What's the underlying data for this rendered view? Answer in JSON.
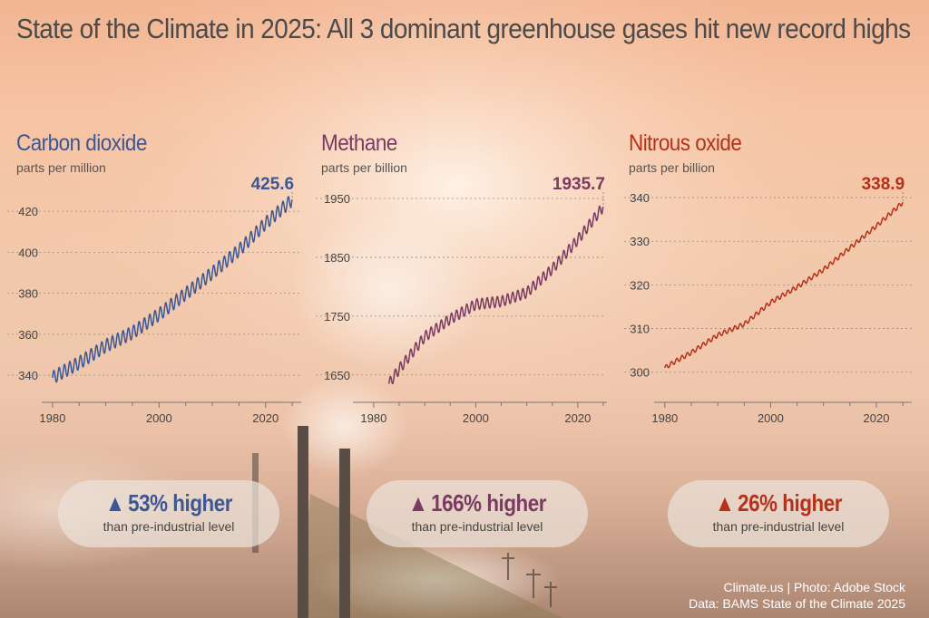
{
  "title": "State of the Climate in 2025: All 3 dominant greenhouse gases hit new record highs",
  "credits": {
    "line1": "Climate.us | Photo: Adobe Stock",
    "line2": "Data: BAMS State of the Climate 2025"
  },
  "chart_data": [
    {
      "type": "line",
      "title": "Carbon dioxide",
      "ylabel": "parts per million",
      "color": "#3c5794",
      "latest_label": "425.6",
      "xlim": [
        1979,
        2026
      ],
      "ylim": [
        333,
        432
      ],
      "x_ticks": [
        1980,
        2000,
        2020
      ],
      "y_ticks": [
        340,
        360,
        380,
        400,
        420
      ],
      "series": [
        {
          "x": [
            1980,
            1985,
            1990,
            1995,
            2000,
            2005,
            2010,
            2015,
            2020,
            2025
          ],
          "y": [
            338.8,
            346.1,
            354.4,
            360.8,
            369.7,
            379.8,
            389.9,
            401.0,
            414.2,
            425.6
          ]
        }
      ],
      "seasonal_amplitude": 3.2,
      "comparison": {
        "arrow": "▲",
        "headline": "53% higher",
        "subtext": "than pre-industrial level"
      }
    },
    {
      "type": "line",
      "title": "Methane",
      "ylabel": "parts per billion",
      "color": "#7a3a62",
      "latest_label": "1935.7",
      "xlim": [
        1977,
        2025
      ],
      "ylim": [
        1625,
        1970
      ],
      "x_ticks": [
        1980,
        2000,
        2020
      ],
      "y_ticks": [
        1650,
        1750,
        1850,
        1950
      ],
      "series": [
        {
          "x": [
            1983,
            1985,
            1990,
            1995,
            2000,
            2005,
            2010,
            2015,
            2020,
            2025
          ],
          "y": [
            1635,
            1660,
            1715,
            1745,
            1770,
            1775,
            1790,
            1830,
            1880,
            1935.7
          ]
        }
      ],
      "seasonal_amplitude": 9,
      "comparison": {
        "arrow": "▲",
        "headline": "166% higher",
        "subtext": "than pre-industrial level"
      }
    },
    {
      "type": "line",
      "title": "Nitrous oxide",
      "ylabel": "parts per billion",
      "color": "#b5311a",
      "latest_label": "338.9",
      "xlim": [
        1979,
        2026
      ],
      "ylim": [
        296,
        342.5
      ],
      "x_ticks": [
        1980,
        2000,
        2020
      ],
      "y_ticks": [
        300,
        310,
        320,
        330,
        340
      ],
      "series": [
        {
          "x": [
            1980,
            1982,
            1985,
            1990,
            1995,
            2000,
            2005,
            2010,
            2015,
            2020,
            2025
          ],
          "y": [
            301,
            302.5,
            304.5,
            308.5,
            311,
            316,
            319.5,
            323.5,
            328.5,
            333.5,
            338.9
          ]
        }
      ],
      "seasonal_amplitude": 0.5,
      "comparison": {
        "arrow": "▲",
        "headline": "26% higher",
        "subtext": "than pre-industrial level"
      }
    }
  ]
}
